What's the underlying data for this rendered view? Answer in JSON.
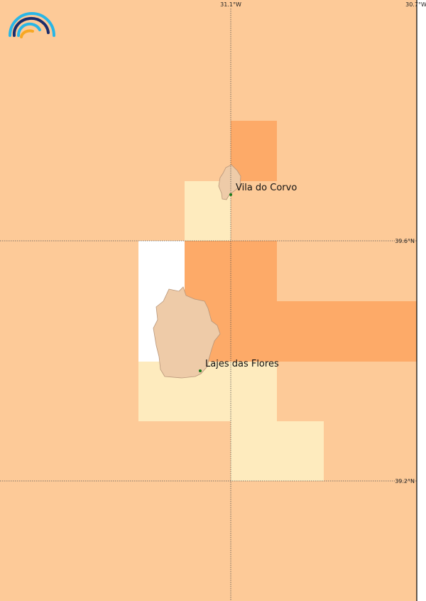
{
  "map": {
    "grid_labels": {
      "lon": [
        "31.1°W",
        "30.7°W"
      ],
      "lat": [
        "39.6°N",
        "39.2°N"
      ]
    },
    "places": [
      "Vila do Corvo",
      "Lajes das Flores"
    ]
  }
}
